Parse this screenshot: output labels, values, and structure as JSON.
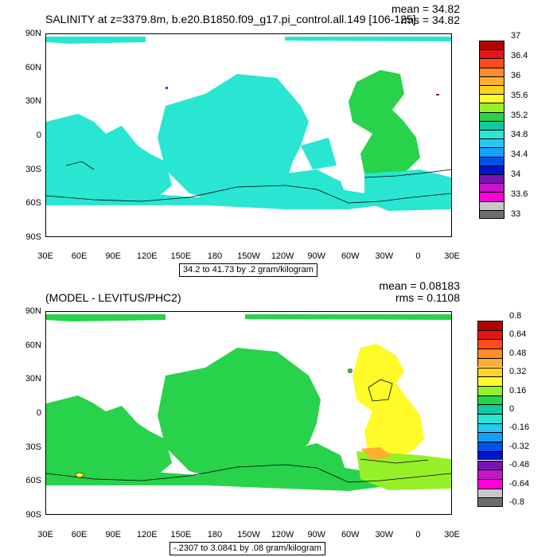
{
  "panel1": {
    "title": "SALINITY at z=3379.8m, b.e20.B1850.f09_g17.pi_control.all.149 [106-125]",
    "mean": "mean = 34.82",
    "rms": "rms = 34.82",
    "range": "34.2 to 41.73 by .2 gram/kilogram",
    "colorbar_labels": [
      "37",
      "36.4",
      "36",
      "35.6",
      "35.2",
      "34.8",
      "34.4",
      "34",
      "33.6",
      "33"
    ],
    "colorbar_colors": [
      "#b40000",
      "#e41616",
      "#ff4a1e",
      "#ff8c2a",
      "#ffae32",
      "#ffd228",
      "#fffa28",
      "#96f028",
      "#28d24b",
      "#14c8a0",
      "#28e6d2",
      "#28c8f0",
      "#14a0ff",
      "#0050e6",
      "#0014c8",
      "#7814b4",
      "#c814c8",
      "#ff00dc",
      "#c8c8c8",
      "#6e6e6e"
    ],
    "field_color": "#28e6d2",
    "atlantic_color": "#28d24b"
  },
  "panel2": {
    "title": "(MODEL - LEVITUS/PHC2)",
    "mean": "mean = 0.08183",
    "rms": "rms = 0.1108",
    "range": "-.2307 to 3.0841 by .08 gram/kilogram",
    "colorbar_labels": [
      "0.8",
      "0.64",
      "0.48",
      "0.32",
      "0.16",
      "0",
      "-0.16",
      "-0.32",
      "-0.48",
      "-0.64",
      "-0.8"
    ],
    "colorbar_colors": [
      "#b40000",
      "#e41616",
      "#ff4a1e",
      "#ff8c2a",
      "#ffae32",
      "#ffd228",
      "#fffa28",
      "#96f028",
      "#28d24b",
      "#14c8a0",
      "#28e6d2",
      "#28c8f0",
      "#14a0ff",
      "#0050e6",
      "#0014c8",
      "#7814b4",
      "#c814c8",
      "#ff00dc",
      "#c8c8c8",
      "#6e6e6e"
    ],
    "field_color": "#28d24b",
    "atlantic_color": "#fffa28"
  },
  "axes": {
    "lat_labels": [
      "90N",
      "60N",
      "30N",
      "0",
      "30S",
      "60S",
      "90S"
    ],
    "lon_labels": [
      "30E",
      "60E",
      "90E",
      "120E",
      "150E",
      "180",
      "150W",
      "120W",
      "90W",
      "60W",
      "30W",
      "0",
      "30E"
    ]
  }
}
